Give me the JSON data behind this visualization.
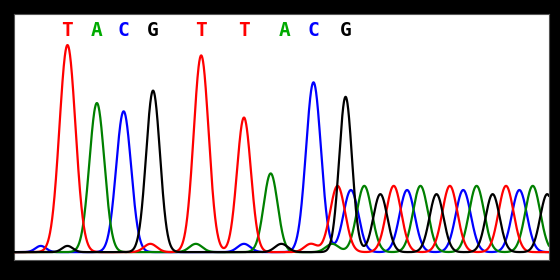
{
  "bases": [
    "T",
    "A",
    "C",
    "G",
    "T",
    "T",
    "A",
    "C",
    "G"
  ],
  "base_colors": [
    "#ff0000",
    "#00aa00",
    "#0000ff",
    "#000000",
    "#ff0000",
    "#ff0000",
    "#00aa00",
    "#0000ff",
    "#000000"
  ],
  "bg_color": "#ffffff",
  "outer_bg": "#000000",
  "line_width": 1.6,
  "base_fontsize": 14,
  "xlim": [
    0,
    10
  ],
  "ylim": [
    -0.04,
    1.15
  ]
}
